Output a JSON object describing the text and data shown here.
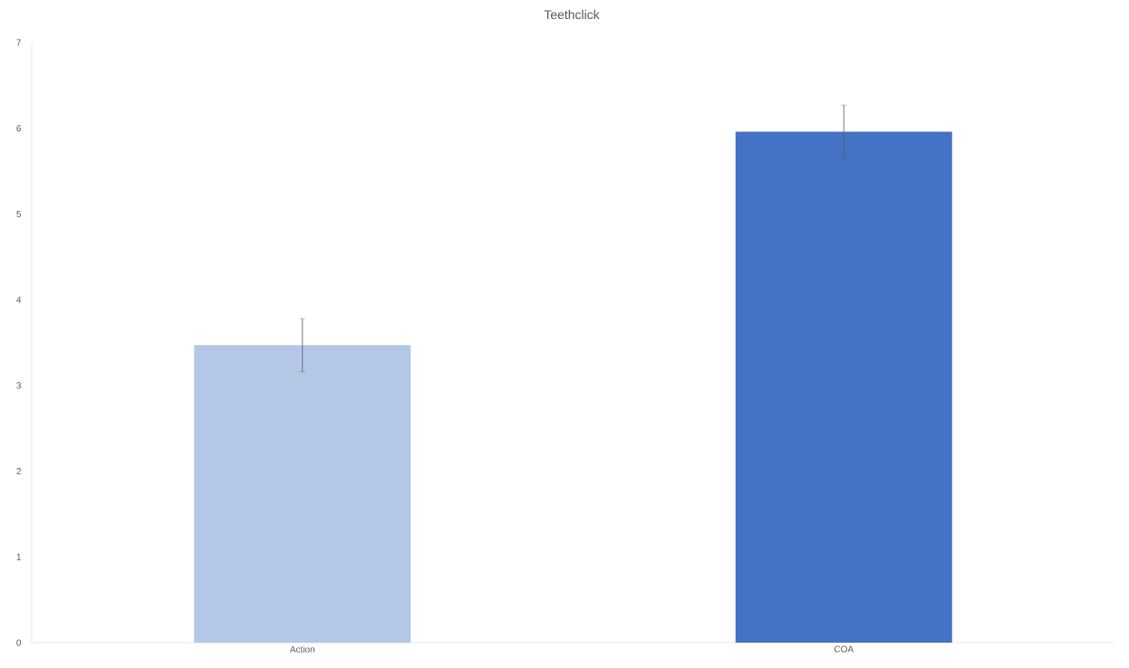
{
  "chart_data": {
    "type": "bar",
    "title": "Teethclick",
    "categories": [
      "Action",
      "COA"
    ],
    "values": [
      3.47,
      5.96
    ],
    "errors": [
      0.31,
      0.31
    ],
    "colors": [
      "#b4c7e7",
      "#4472c4"
    ],
    "ylim": [
      0,
      7
    ],
    "yticks": [
      0,
      1,
      2,
      3,
      4,
      5,
      6,
      7
    ]
  }
}
